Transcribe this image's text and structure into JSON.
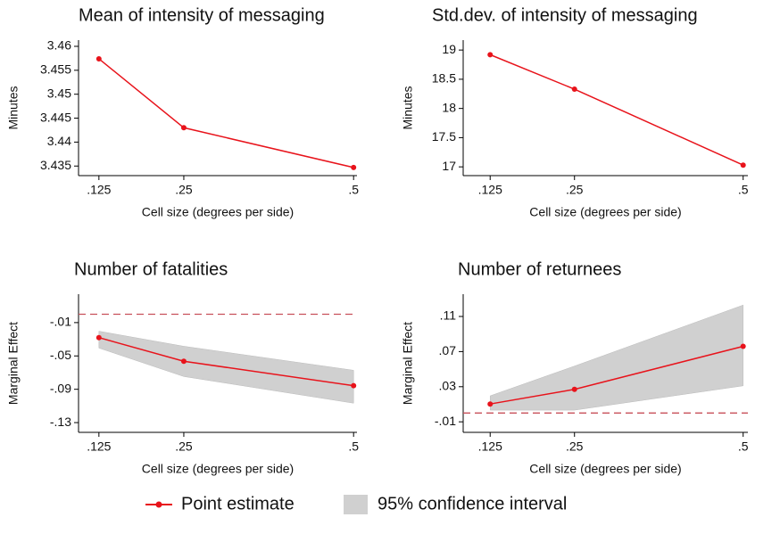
{
  "chart_data": [
    {
      "type": "line",
      "title": "Mean of intensity of messaging",
      "xlabel": "Cell size (degrees per side)",
      "ylabel": "Minutes",
      "x": [
        0.125,
        0.25,
        0.5
      ],
      "values": [
        3.4574,
        3.443,
        3.4347
      ],
      "xlim": [
        0.095,
        0.505
      ],
      "xticks": [
        {
          "value": 0.125,
          "label": ".125"
        },
        {
          "value": 0.25,
          "label": ".25"
        },
        {
          "value": 0.5,
          "label": ".5"
        }
      ],
      "ylim": [
        3.433,
        3.4613
      ],
      "yticks": [
        3.435,
        3.44,
        3.445,
        3.45,
        3.455,
        3.46
      ]
    },
    {
      "type": "line",
      "title": "Std.dev. of intensity of messaging",
      "xlabel": "Cell size (degrees per side)",
      "ylabel": "Minutes",
      "x": [
        0.125,
        0.25,
        0.5
      ],
      "values": [
        18.92,
        18.33,
        17.03
      ],
      "xlim": [
        0.085,
        0.507
      ],
      "xticks": [
        {
          "value": 0.125,
          "label": ".125"
        },
        {
          "value": 0.25,
          "label": ".25"
        },
        {
          "value": 0.5,
          "label": ".5"
        }
      ],
      "ylim": [
        16.85,
        19.17
      ],
      "yticks": [
        17,
        17.5,
        18,
        18.5,
        19
      ]
    },
    {
      "type": "line",
      "title": "Number of fatalities",
      "xlabel": "Cell size (degrees per side)",
      "ylabel": "Marginal Effect",
      "x": [
        0.125,
        0.25,
        0.5
      ],
      "values": [
        -0.028,
        -0.0564,
        -0.0857
      ],
      "lower": [
        -0.0405,
        -0.0747,
        -0.1067
      ],
      "upper": [
        -0.0203,
        -0.0384,
        -0.0672
      ],
      "ref_line": 0,
      "xlim": [
        0.095,
        0.505
      ],
      "xticks": [
        {
          "value": 0.125,
          "label": ".125"
        },
        {
          "value": 0.25,
          "label": ".25"
        },
        {
          "value": 0.5,
          "label": ".5"
        }
      ],
      "ylim": [
        -0.1417,
        0.0241
      ],
      "yticks": [
        {
          "value": -0.13,
          "label": "-.13"
        },
        {
          "value": -0.09,
          "label": "-.09"
        },
        {
          "value": -0.05,
          "label": "-.05"
        },
        {
          "value": -0.01,
          "label": "-.01"
        }
      ]
    },
    {
      "type": "line",
      "title": "Number of returnees",
      "xlabel": "Cell size (degrees per side)",
      "ylabel": "Marginal Effect",
      "x": [
        0.125,
        0.25,
        0.5
      ],
      "values": [
        0.0103,
        0.027,
        0.076
      ],
      "lower": [
        0.0033,
        0.0033,
        0.031
      ],
      "upper": [
        0.0196,
        0.0535,
        0.123
      ],
      "ref_line": 0,
      "xlim": [
        0.085,
        0.507
      ],
      "xticks": [
        {
          "value": 0.125,
          "label": ".125"
        },
        {
          "value": 0.25,
          "label": ".25"
        },
        {
          "value": 0.5,
          "label": ".5"
        }
      ],
      "ylim": [
        -0.022,
        0.1354
      ],
      "yticks": [
        {
          "value": -0.01,
          "label": "-.01"
        },
        {
          "value": 0.03,
          "label": ".03"
        },
        {
          "value": 0.07,
          "label": ".07"
        },
        {
          "value": 0.11,
          "label": ".11"
        }
      ]
    }
  ],
  "legend": [
    {
      "label": "Point estimate",
      "color": "#e8131b"
    },
    {
      "label": "95% confidence interval",
      "color": "#d0d0d0"
    }
  ],
  "ref_line_color": "#c8505a"
}
